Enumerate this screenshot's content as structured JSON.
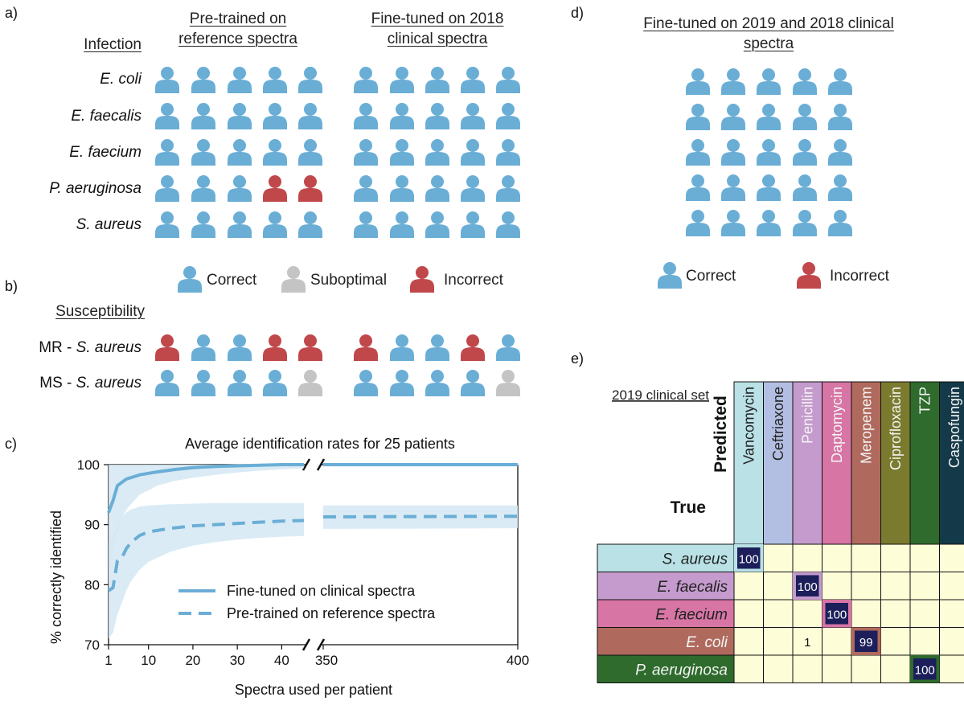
{
  "colors": {
    "correct": "#6aaed6",
    "suboptimal": "#c4c4c4",
    "incorrect": "#c0484b",
    "band": "#d4e7f3"
  },
  "panels": {
    "a": "a)",
    "b": "b)",
    "c": "c)",
    "d": "d)",
    "e": "e)"
  },
  "panel_a": {
    "header_left": "Pre-trained on reference spectra",
    "header_right": "Fine-tuned on 2018 clinical spectra",
    "column_title": "Infection",
    "rows": [
      {
        "label": "E. coli",
        "pretrained": [
          "c",
          "c",
          "c",
          "c",
          "c"
        ],
        "finetuned": [
          "c",
          "c",
          "c",
          "c",
          "c"
        ]
      },
      {
        "label": "E. faecalis",
        "pretrained": [
          "c",
          "c",
          "c",
          "c",
          "c"
        ],
        "finetuned": [
          "c",
          "c",
          "c",
          "c",
          "c"
        ]
      },
      {
        "label": "E. faecium",
        "pretrained": [
          "c",
          "c",
          "c",
          "c",
          "c"
        ],
        "finetuned": [
          "c",
          "c",
          "c",
          "c",
          "c"
        ]
      },
      {
        "label": "P. aeruginosa",
        "pretrained": [
          "c",
          "c",
          "c",
          "i",
          "i"
        ],
        "finetuned": [
          "c",
          "c",
          "c",
          "c",
          "c"
        ]
      },
      {
        "label": "S. aureus",
        "pretrained": [
          "c",
          "c",
          "c",
          "c",
          "c"
        ],
        "finetuned": [
          "c",
          "c",
          "c",
          "c",
          "c"
        ]
      }
    ],
    "legend": {
      "correct": "Correct",
      "suboptimal": "Suboptimal",
      "incorrect": "Incorrect"
    }
  },
  "panel_b": {
    "column_title": "Susceptibility",
    "rows": [
      {
        "prefix": "MR - ",
        "label": "S. aureus",
        "pretrained": [
          "i",
          "c",
          "c",
          "i",
          "i"
        ],
        "finetuned": [
          "i",
          "c",
          "c",
          "i",
          "c"
        ]
      },
      {
        "prefix": "MS - ",
        "label": "S. aureus",
        "pretrained": [
          "c",
          "c",
          "c",
          "c",
          "s"
        ],
        "finetuned": [
          "c",
          "c",
          "c",
          "c",
          "s"
        ]
      }
    ]
  },
  "panel_d": {
    "header": "Fine-tuned on 2019 and 2018 clinical spectra",
    "grid": [
      [
        "c",
        "c",
        "c",
        "c",
        "c"
      ],
      [
        "c",
        "c",
        "c",
        "c",
        "c"
      ],
      [
        "c",
        "c",
        "c",
        "c",
        "c"
      ],
      [
        "c",
        "c",
        "c",
        "c",
        "c"
      ],
      [
        "c",
        "c",
        "c",
        "c",
        "c"
      ]
    ],
    "legend": {
      "correct": "Correct",
      "incorrect": "Incorrect"
    }
  },
  "chart_data": {
    "type": "line",
    "title": "Average identification rates for 25 patients",
    "xlabel": "Spectra used per patient",
    "ylabel": "% correctly identified",
    "ylim": [
      70,
      100
    ],
    "yticks": [
      70,
      80,
      90,
      100
    ],
    "xticks_left": [
      1,
      10,
      20,
      30,
      40
    ],
    "xticks_right": [
      350,
      400
    ],
    "x_break": "axis broken between ~45 and 350",
    "series": [
      {
        "name": "Fine-tuned on clinical spectra",
        "style": "solid",
        "x": [
          1,
          2,
          3,
          5,
          8,
          12,
          16,
          20,
          25,
          30,
          35,
          40,
          45,
          350,
          400
        ],
        "y": [
          92,
          94,
          96.5,
          97.6,
          98.3,
          98.8,
          99.2,
          99.5,
          99.7,
          99.8,
          99.9,
          100,
          100,
          100,
          100
        ],
        "band_low": [
          81,
          86,
          89,
          92.5,
          95,
          96.5,
          97.3,
          97.8,
          98.3,
          98.7,
          99,
          99.2,
          99.4,
          99.7,
          99.7
        ],
        "band_high": [
          100,
          100,
          100,
          100,
          100,
          100,
          100,
          100,
          100,
          100,
          100,
          100,
          100,
          100,
          100
        ]
      },
      {
        "name": "Pre-trained on reference spectra",
        "style": "dashed",
        "x": [
          1,
          2,
          3,
          4,
          5,
          6,
          8,
          10,
          15,
          20,
          25,
          30,
          35,
          40,
          45,
          350,
          400
        ],
        "y": [
          79,
          79.5,
          84,
          84.5,
          86,
          87,
          88.2,
          88.8,
          89.4,
          89.8,
          90,
          90.2,
          90.4,
          90.6,
          90.7,
          91.3,
          91.4
        ],
        "band_low": [
          71,
          72,
          75,
          77,
          79,
          80.5,
          82.5,
          83.8,
          85.5,
          86.5,
          87.1,
          87.5,
          87.8,
          88,
          88.1,
          89.3,
          89.4
        ],
        "band_high": [
          87,
          88,
          90,
          91,
          92,
          92.5,
          93,
          93.2,
          93.4,
          93.5,
          93.6,
          93.6,
          93.6,
          93.6,
          93.6,
          93.2,
          93.2
        ]
      }
    ]
  },
  "panel_e": {
    "set_label": "2019 clinical set",
    "predicted_label": "Predicted",
    "true_label": "True",
    "columns": [
      {
        "name": "Vancomycin",
        "color": "#b9e1e6"
      },
      {
        "name": "Ceftriaxone",
        "color": "#b3bfe2"
      },
      {
        "name": "Penicillin",
        "color": "#c59bcd"
      },
      {
        "name": "Daptomycin",
        "color": "#d775a5"
      },
      {
        "name": "Meropenem",
        "color": "#b06a5d"
      },
      {
        "name": "Ciprofloxacin",
        "color": "#7b7b2f"
      },
      {
        "name": "TZP",
        "color": "#2e6b2c"
      },
      {
        "name": "Caspofungin",
        "color": "#143a49"
      }
    ],
    "rows": [
      {
        "name": "S. aureus",
        "color": "#b9e1e6",
        "text_dark": true
      },
      {
        "name": "E. faecalis",
        "color": "#c59bcd",
        "text_dark": true
      },
      {
        "name": "E. faecium",
        "color": "#d775a5",
        "text_dark": true
      },
      {
        "name": "E. coli",
        "color": "#b06a5d",
        "text_dark": false
      },
      {
        "name": "P. aeruginosa",
        "color": "#2e6b2c",
        "text_dark": false
      }
    ],
    "cells": [
      {
        "row": 0,
        "col": 0,
        "value": "100",
        "highlight": true
      },
      {
        "row": 1,
        "col": 2,
        "value": "100",
        "highlight": true
      },
      {
        "row": 2,
        "col": 3,
        "value": "100",
        "highlight": true
      },
      {
        "row": 3,
        "col": 2,
        "value": "1",
        "highlight": false
      },
      {
        "row": 3,
        "col": 4,
        "value": "99",
        "highlight": true
      },
      {
        "row": 4,
        "col": 6,
        "value": "100",
        "highlight": true
      }
    ],
    "cell_bg": "#fdfdd8",
    "highlight_bg": "#1c1f5a"
  }
}
